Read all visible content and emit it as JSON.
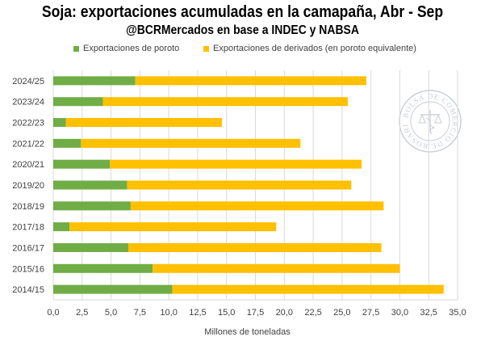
{
  "chart_data": {
    "type": "bar",
    "orientation": "horizontal",
    "stacked": true,
    "title": "Soja: exportaciones acumuladas en la camapaña, Abr - Sep",
    "subtitle": "@BCRMercados en base a INDEC y NABSA",
    "xlabel": "Millones de toneladas",
    "ylabel": "",
    "xlim": [
      0,
      35
    ],
    "xticks": [
      "0,0",
      "2,5",
      "5,0",
      "7,5",
      "10,0",
      "12,5",
      "15,0",
      "17,5",
      "20,0",
      "22,5",
      "25,0",
      "27,5",
      "30,0",
      "32,5",
      "35,0"
    ],
    "grid": "vertical",
    "legend_position": "top",
    "categories": [
      "2024/25",
      "2023/24",
      "2022/23",
      "2021/22",
      "2020/21",
      "2019/20",
      "2018/19",
      "2017/18",
      "2016/17",
      "2015/16",
      "2014/15"
    ],
    "series": [
      {
        "name": "Exportaciones de poroto",
        "color": "#70ad47",
        "values": [
          7.1,
          4.3,
          1.1,
          2.4,
          4.9,
          6.4,
          6.7,
          1.4,
          6.5,
          8.6,
          10.3
        ]
      },
      {
        "name": "Exportaciones de derivados (en poroto equivalente)",
        "color": "#ffc000",
        "values": [
          20.0,
          21.2,
          13.5,
          19.0,
          21.8,
          19.4,
          21.9,
          17.9,
          21.9,
          21.4,
          23.5
        ]
      }
    ]
  },
  "watermark": {
    "text": "BOLSA DE COMERCIO DE ROSARIO",
    "color": "#c9ced6"
  }
}
